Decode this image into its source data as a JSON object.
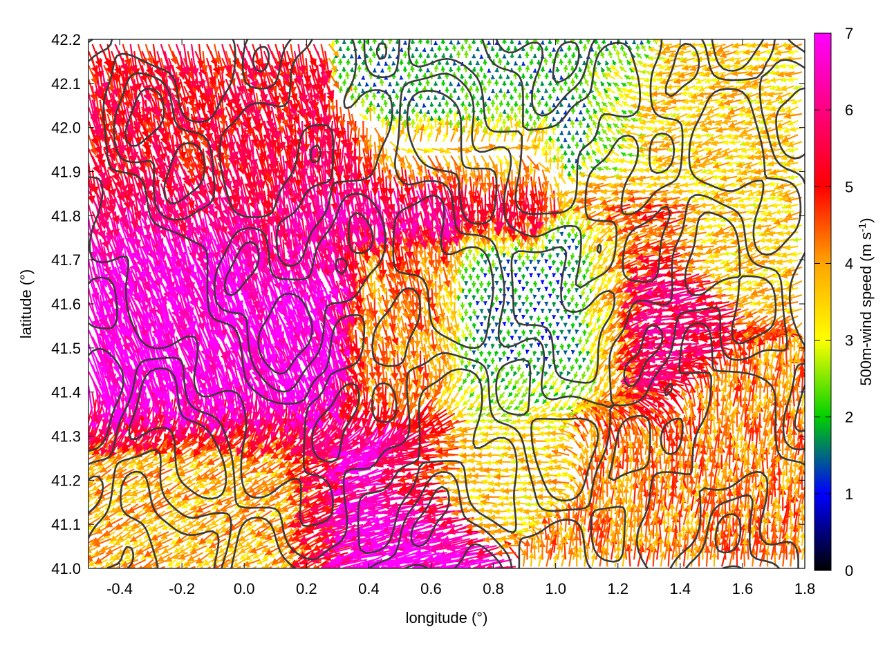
{
  "chart_data": {
    "type": "vector_field",
    "xlabel": "longitude (°)",
    "ylabel": "latitude (°)",
    "xlim": [
      -0.5,
      1.8
    ],
    "ylim": [
      41.0,
      42.2
    ],
    "xticks": [
      "-0.4",
      "-0.2",
      "0.0",
      "0.2",
      "0.4",
      "0.6",
      "0.8",
      "1.0",
      "1.2",
      "1.4",
      "1.6",
      "1.8"
    ],
    "yticks": [
      "41.0",
      "41.1",
      "41.2",
      "41.3",
      "41.4",
      "41.5",
      "41.6",
      "41.7",
      "41.8",
      "41.9",
      "42.0",
      "42.1",
      "42.2"
    ],
    "colorbar": {
      "label_main": "500m-wind speed (m s",
      "label_sup": "-1",
      "label_end": ")",
      "range": [
        0,
        7
      ],
      "ticks": [
        "0",
        "1",
        "2",
        "3",
        "4",
        "5",
        "6",
        "7"
      ],
      "colors": [
        "#000000",
        "#0000ff",
        "#00d000",
        "#ffff00",
        "#ffa500",
        "#ff0000",
        "#ff00ff"
      ]
    },
    "wind_regions": [
      {
        "lon": [
          -0.5,
          0.05
        ],
        "lat": [
          41.85,
          42.2
        ],
        "speed": 5.2,
        "direction_deg": 165
      },
      {
        "lon": [
          -0.5,
          0.6
        ],
        "lat": [
          41.35,
          41.85
        ],
        "speed": 6.8,
        "direction_deg": 160
      },
      {
        "lon": [
          0.05,
          0.9
        ],
        "lat": [
          41.78,
          41.95
        ],
        "speed": 5.5,
        "direction_deg": 178
      },
      {
        "lon": [
          0.4,
          1.2
        ],
        "lat": [
          41.4,
          41.75
        ],
        "speed": 1.6,
        "direction_deg": 180
      },
      {
        "lon": [
          0.5,
          1.2
        ],
        "lat": [
          41.95,
          42.2
        ],
        "speed": 1.8,
        "direction_deg": 0
      },
      {
        "lon": [
          1.2,
          1.8
        ],
        "lat": [
          41.75,
          42.1
        ],
        "speed": 3.5,
        "direction_deg": 255
      },
      {
        "lon": [
          1.2,
          1.35
        ],
        "lat": [
          41.35,
          41.8
        ],
        "speed": 5.8,
        "direction_deg": 260
      },
      {
        "lon": [
          1.15,
          1.8
        ],
        "lat": [
          41.0,
          41.35
        ],
        "speed": 4.2,
        "direction_deg": 5
      },
      {
        "lon": [
          -0.5,
          0.3
        ],
        "lat": [
          41.0,
          41.35
        ],
        "speed": 3.8,
        "direction_deg": 240
      },
      {
        "lon": [
          0.3,
          0.6
        ],
        "lat": [
          41.0,
          41.35
        ],
        "speed": 6.8,
        "direction_deg": 255
      },
      {
        "lon": [
          0.6,
          1.0
        ],
        "lat": [
          41.2,
          41.4
        ],
        "speed": 3.5,
        "direction_deg": 270
      }
    ],
    "contour_level_count": 3
  }
}
